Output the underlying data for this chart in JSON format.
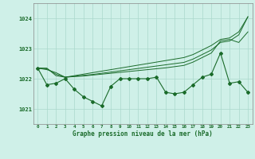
{
  "background_color": "#cff0e8",
  "grid_color": "#aad8cc",
  "line_color": "#1a6b2a",
  "xlabel": "Graphe pression niveau de la mer (hPa)",
  "ylim": [
    1020.5,
    1024.5
  ],
  "yticks": [
    1021,
    1022,
    1023,
    1024
  ],
  "xlim": [
    -0.5,
    23.5
  ],
  "xticks": [
    0,
    1,
    2,
    3,
    4,
    5,
    6,
    7,
    8,
    9,
    10,
    11,
    12,
    13,
    14,
    15,
    16,
    17,
    18,
    19,
    20,
    21,
    22,
    23
  ],
  "series_main": [
    1022.35,
    1021.8,
    1021.85,
    1022.0,
    1021.65,
    1021.4,
    1021.25,
    1021.1,
    1021.75,
    1022.0,
    1022.0,
    1022.0,
    1022.0,
    1022.05,
    1021.55,
    1021.5,
    1021.55,
    1021.8,
    1022.05,
    1022.15,
    1022.85,
    1021.85,
    1021.9,
    1021.55
  ],
  "series_line1": [
    1022.35,
    1022.35,
    1022.1,
    1022.05,
    1022.07,
    1022.09,
    1022.12,
    1022.15,
    1022.18,
    1022.21,
    1022.24,
    1022.27,
    1022.3,
    1022.33,
    1022.36,
    1022.4,
    1022.44,
    1022.55,
    1022.7,
    1022.85,
    1023.25,
    1023.3,
    1023.2,
    1023.55
  ],
  "series_line2": [
    1022.35,
    1022.33,
    1022.15,
    1022.05,
    1022.08,
    1022.11,
    1022.14,
    1022.18,
    1022.22,
    1022.26,
    1022.3,
    1022.34,
    1022.38,
    1022.42,
    1022.46,
    1022.5,
    1022.54,
    1022.65,
    1022.8,
    1022.95,
    1023.2,
    1023.25,
    1023.45,
    1024.05
  ],
  "series_line3": [
    1022.35,
    1022.3,
    1022.2,
    1022.05,
    1022.1,
    1022.15,
    1022.2,
    1022.25,
    1022.3,
    1022.35,
    1022.4,
    1022.45,
    1022.5,
    1022.55,
    1022.6,
    1022.65,
    1022.7,
    1022.8,
    1022.95,
    1023.1,
    1023.3,
    1023.35,
    1023.55,
    1024.05
  ]
}
